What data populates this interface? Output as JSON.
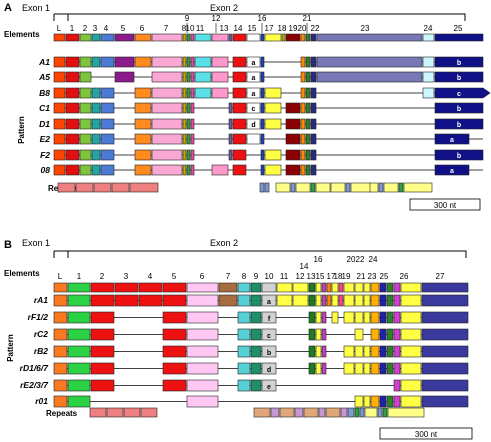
{
  "colors": {
    "L": "#ff4400",
    "1": "#e01010",
    "2": "#7dc540",
    "3": "#23a5a5",
    "4": "#4b7bd4",
    "5": "#8b1a8b",
    "6": "#ff8a1f",
    "7": "#f9a8d4",
    "8": "#c9a600",
    "9": "#2aa33a",
    "10": "#e84aa8",
    "11": "#59e0e6",
    "12": "#ff99cc",
    "13": "#6a5aa0",
    "14": "#ee1111",
    "15": "#ffffff",
    "16": "#2040c0",
    "17": "#ffff44",
    "18": "#b3b300",
    "19": "#8b0000",
    "20": "#ff8800",
    "21": "#2f7f2f",
    "22": "#2a2a80",
    "23": "#7878b8",
    "24": "#ccf6ff",
    "25": "#101088"
  },
  "colorsB": {
    "L": "#f97a1e",
    "1": "#2cd245",
    "2": "#ee1111",
    "3": "#ee1111",
    "4": "#ee1111",
    "5": "#ee1111",
    "6": "#ffc7f2",
    "7": "#a66b3e",
    "8": "#55d0d6",
    "9": "#1d8f6a",
    "10": "#d2d2d2",
    "11": "#ffff44",
    "12": "#ffff44",
    "13": "#1f7a1f",
    "14": "#ffff44",
    "15": "#c040c0",
    "16": "#ff8800",
    "17": "#ffff44",
    "18": "#ff4488",
    "19": "#ffff44",
    "20": "#ffff44",
    "21": "#ffff44",
    "22": "#ffb000",
    "23": "#2020aa",
    "24": "#2f7f2f",
    "25": "#d040d0",
    "26": "#ffff44",
    "27": "#3a3a9e"
  },
  "panelA": {
    "letter": "A",
    "exon1": "Exon 1",
    "exon2": "Exon 2",
    "elements_label": "Elements",
    "pattern_label": "Pattern",
    "repeats_label": "Repeats",
    "scale_label": "300 nt",
    "element_numbers": [
      "L",
      "1",
      "2",
      "3",
      "4",
      "5",
      "6",
      "7",
      "8",
      "9",
      "10",
      "11",
      "12",
      "13",
      "14",
      "15",
      "16",
      "17",
      "18",
      "19",
      "20",
      "21",
      "22",
      "23",
      "24",
      "25"
    ],
    "rows": [
      {
        "name": "A1",
        "a15": "a",
        "a25": "b"
      },
      {
        "name": "A5",
        "a15": "a",
        "a25": "b"
      },
      {
        "name": "B8",
        "a15": "a",
        "a25": "c"
      },
      {
        "name": "C1",
        "a15": "c",
        "a25": "b"
      },
      {
        "name": "D1",
        "a15": "d",
        "a25": "b"
      },
      {
        "name": "E2",
        "a15": "x",
        "a25": "a"
      },
      {
        "name": "F2",
        "a15": "",
        "a25": "b"
      },
      {
        "name": "08",
        "a15": "",
        "a25": "a"
      }
    ]
  },
  "panelB": {
    "letter": "B",
    "exon1": "Exon 1",
    "exon2": "Exon 2",
    "elements_label": "Elements",
    "pattern_label": "Pattern",
    "repeats_label": "Repeats",
    "scale_label": "300 nt",
    "element_numbers": [
      "L",
      "1",
      "2",
      "3",
      "4",
      "5",
      "6",
      "7",
      "8",
      "9",
      "10",
      "11",
      "12",
      "13",
      "14",
      "15",
      "16",
      "17",
      "18",
      "19",
      "20",
      "21",
      "22",
      "23",
      "24",
      "25",
      "26",
      "27"
    ],
    "rows": [
      {
        "name": "rA1",
        "b10": "a"
      },
      {
        "name": "rF1/2",
        "b10": "f"
      },
      {
        "name": "rC2",
        "b10": "c"
      },
      {
        "name": "rB2",
        "b10": "b"
      },
      {
        "name": "rD1/6/7",
        "b10": "d"
      },
      {
        "name": "rE2/3/7",
        "b10": "e"
      },
      {
        "name": "r01",
        "b10": ""
      }
    ]
  }
}
